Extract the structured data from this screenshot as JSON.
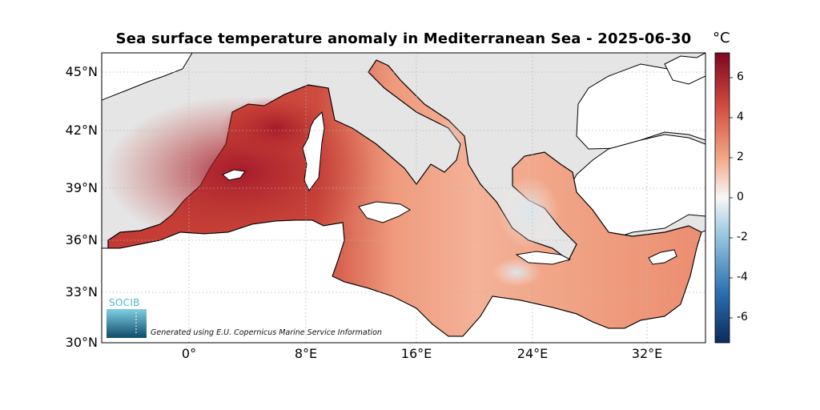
{
  "title": "Sea surface temperature anomaly in Mediterranean Sea - 2025-06-30",
  "colorbar": {
    "unit": "°C",
    "ticks": [
      "6",
      "4",
      "2",
      "0",
      "-2",
      "-4",
      "-6"
    ],
    "range": [
      -7.3,
      7.3
    ],
    "colors": [
      "#0b2a5b",
      "#2b6eb0",
      "#92c2de",
      "#f7f7f7",
      "#f3a584",
      "#d1493f",
      "#7d0722"
    ]
  },
  "map": {
    "lat_ticks": [
      "45°N",
      "42°N",
      "39°N",
      "36°N",
      "33°N",
      "30°N"
    ],
    "lon_ticks": [
      "0°",
      "8°E",
      "16°E",
      "24°E",
      "32°E"
    ],
    "lat_range": [
      30,
      46.2
    ],
    "lon_range": [
      -6.1,
      36.5
    ],
    "land_color": "#ffffff",
    "nodata_color": "#e5e5e5",
    "grid": "dotted"
  },
  "caption": "Generated using E.U. Copernicus Marine Service Information",
  "logo": {
    "text": "SOCIB"
  }
}
